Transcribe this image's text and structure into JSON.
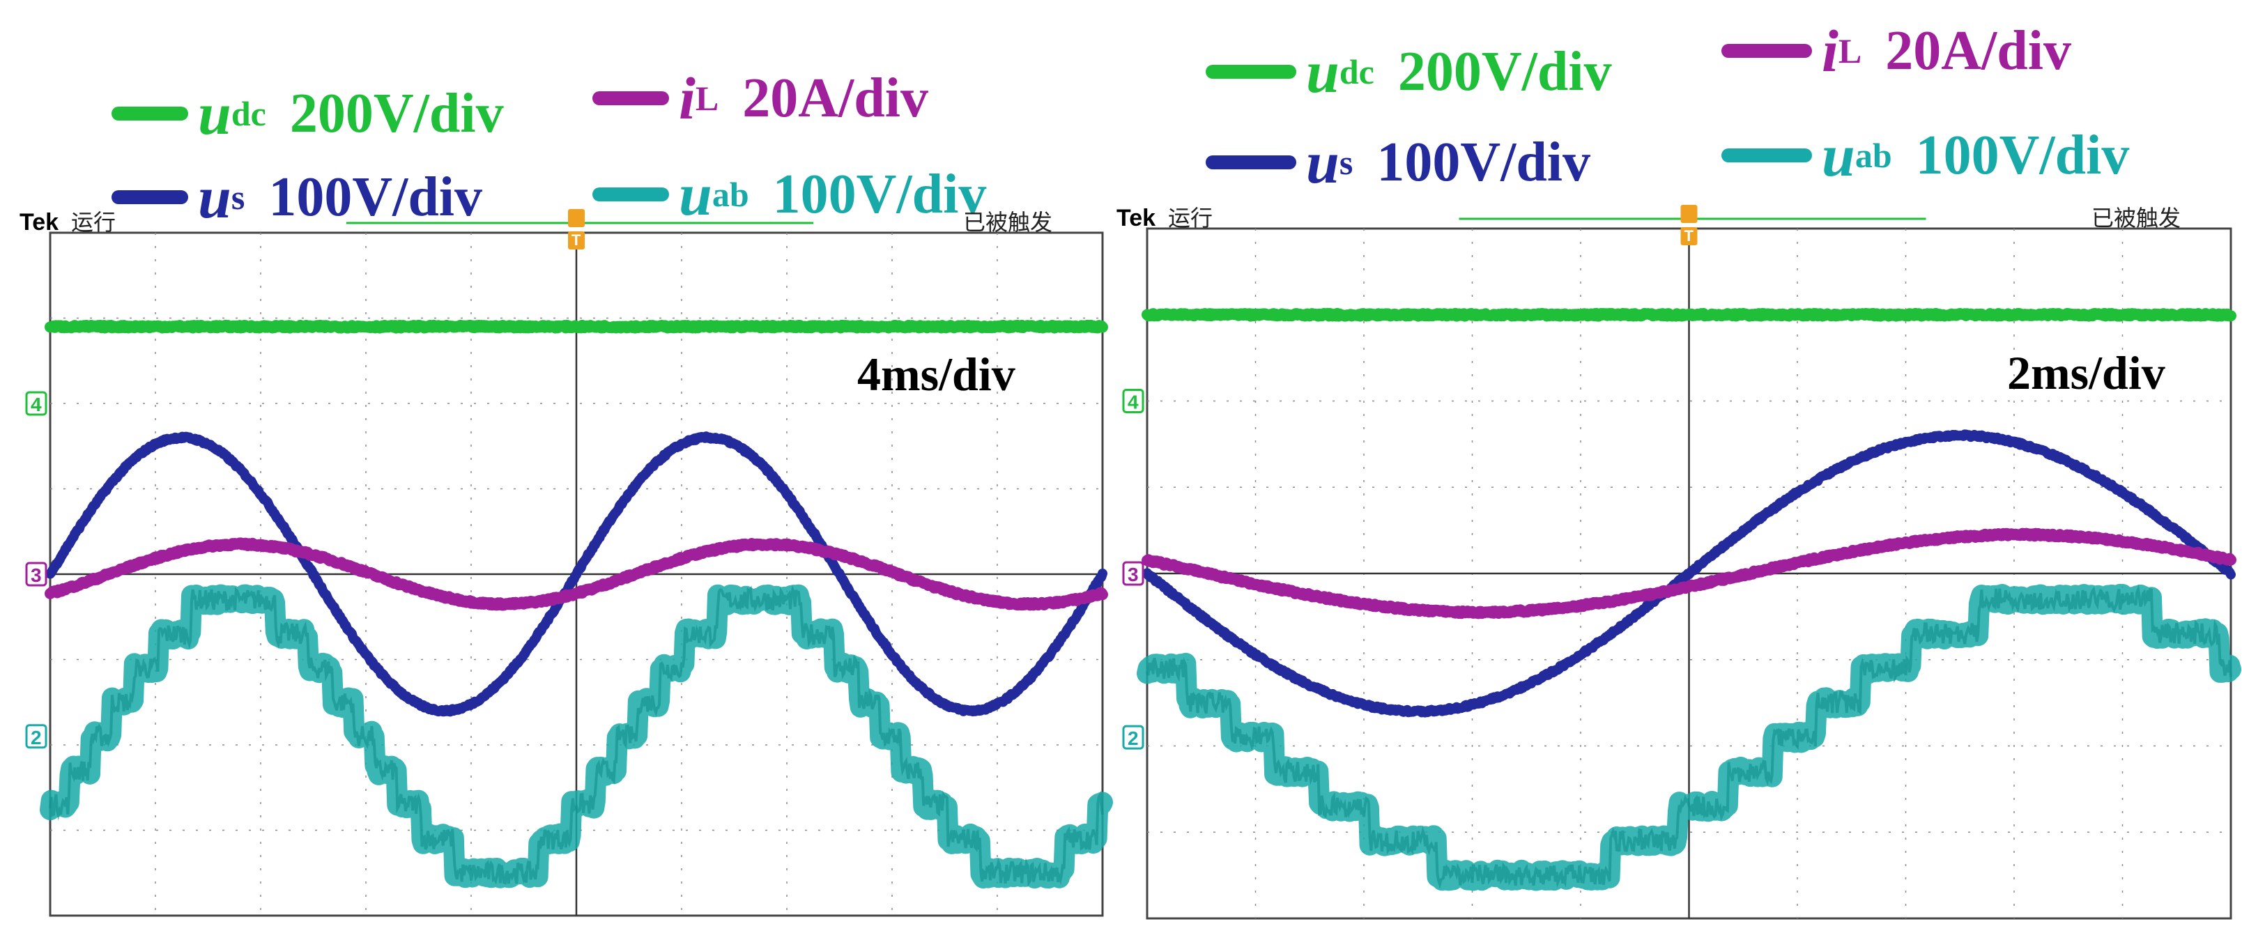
{
  "colors": {
    "udc": "#1fbf3a",
    "iL": "#a0209c",
    "us": "#232a9c",
    "uab": "#18aaa8",
    "grid": "#8a8a8a",
    "trigger": "#f0a020",
    "bg": "#ffffff"
  },
  "scope_header": {
    "brand": "Tek",
    "status": "运行",
    "trigger_status": "已被触发"
  },
  "trigger_marker": "T",
  "panels": [
    {
      "legend": [
        {
          "key": "udc",
          "symbol": "u",
          "subscript": "dc",
          "scale": "200V/div"
        },
        {
          "key": "iL",
          "symbol": "i",
          "subscript": "L",
          "scale": "20A/div"
        },
        {
          "key": "us",
          "symbol": "u",
          "subscript": "s",
          "scale": "100V/div"
        },
        {
          "key": "uab",
          "symbol": "u",
          "subscript": "ab",
          "scale": "100V/div"
        }
      ],
      "time_div": "4ms/div",
      "channel_markers": [
        {
          "label": "4",
          "key": "udc"
        },
        {
          "label": "3",
          "key": "iL"
        },
        {
          "label": "2",
          "key": "uab"
        }
      ]
    },
    {
      "legend": [
        {
          "key": "udc",
          "symbol": "u",
          "subscript": "dc",
          "scale": "200V/div"
        },
        {
          "key": "iL",
          "symbol": "i",
          "subscript": "L",
          "scale": "20A/div"
        },
        {
          "key": "us",
          "symbol": "u",
          "subscript": "s",
          "scale": "100V/div"
        },
        {
          "key": "uab",
          "symbol": "u",
          "subscript": "ab",
          "scale": "100V/div"
        }
      ],
      "time_div": "2ms/div",
      "channel_markers": [
        {
          "label": "4",
          "key": "udc"
        },
        {
          "label": "3",
          "key": "iL"
        },
        {
          "label": "2",
          "key": "uab"
        }
      ]
    }
  ],
  "chart_data": [
    {
      "type": "line",
      "x_unit": "div",
      "y_unit": "div",
      "xlim": [
        0,
        10
      ],
      "ylim": [
        -4,
        4
      ],
      "grid": true,
      "series": [
        {
          "name": "udc",
          "kind": "dc",
          "level": 2.9
        },
        {
          "name": "us",
          "kind": "sine",
          "amplitude": 1.6,
          "periods_on_screen": 2,
          "phase_deg": 0
        },
        {
          "name": "iL",
          "kind": "sine",
          "amplitude": 0.35,
          "periods_on_screen": 2,
          "phase_deg": 40
        },
        {
          "name": "uab",
          "kind": "staircase_sine",
          "offset": -1.9,
          "amplitude": 1.6,
          "periods_on_screen": 2,
          "phase_deg": 35,
          "steps_per_quarter": 4
        }
      ]
    },
    {
      "type": "line",
      "x_unit": "div",
      "y_unit": "div",
      "xlim": [
        0,
        10
      ],
      "ylim": [
        -4,
        4
      ],
      "grid": true,
      "series": [
        {
          "name": "udc",
          "kind": "dc",
          "level": 3.0
        },
        {
          "name": "us",
          "kind": "sine",
          "amplitude": 1.6,
          "periods_on_screen": 1,
          "phase_deg": 180
        },
        {
          "name": "iL",
          "kind": "sine",
          "amplitude": 0.45,
          "periods_on_screen": 1,
          "phase_deg": 200
        },
        {
          "name": "uab",
          "kind": "staircase_sine",
          "offset": -1.9,
          "amplitude": 1.6,
          "periods_on_screen": 1,
          "phase_deg": 215,
          "steps_per_quarter": 4
        }
      ]
    }
  ]
}
